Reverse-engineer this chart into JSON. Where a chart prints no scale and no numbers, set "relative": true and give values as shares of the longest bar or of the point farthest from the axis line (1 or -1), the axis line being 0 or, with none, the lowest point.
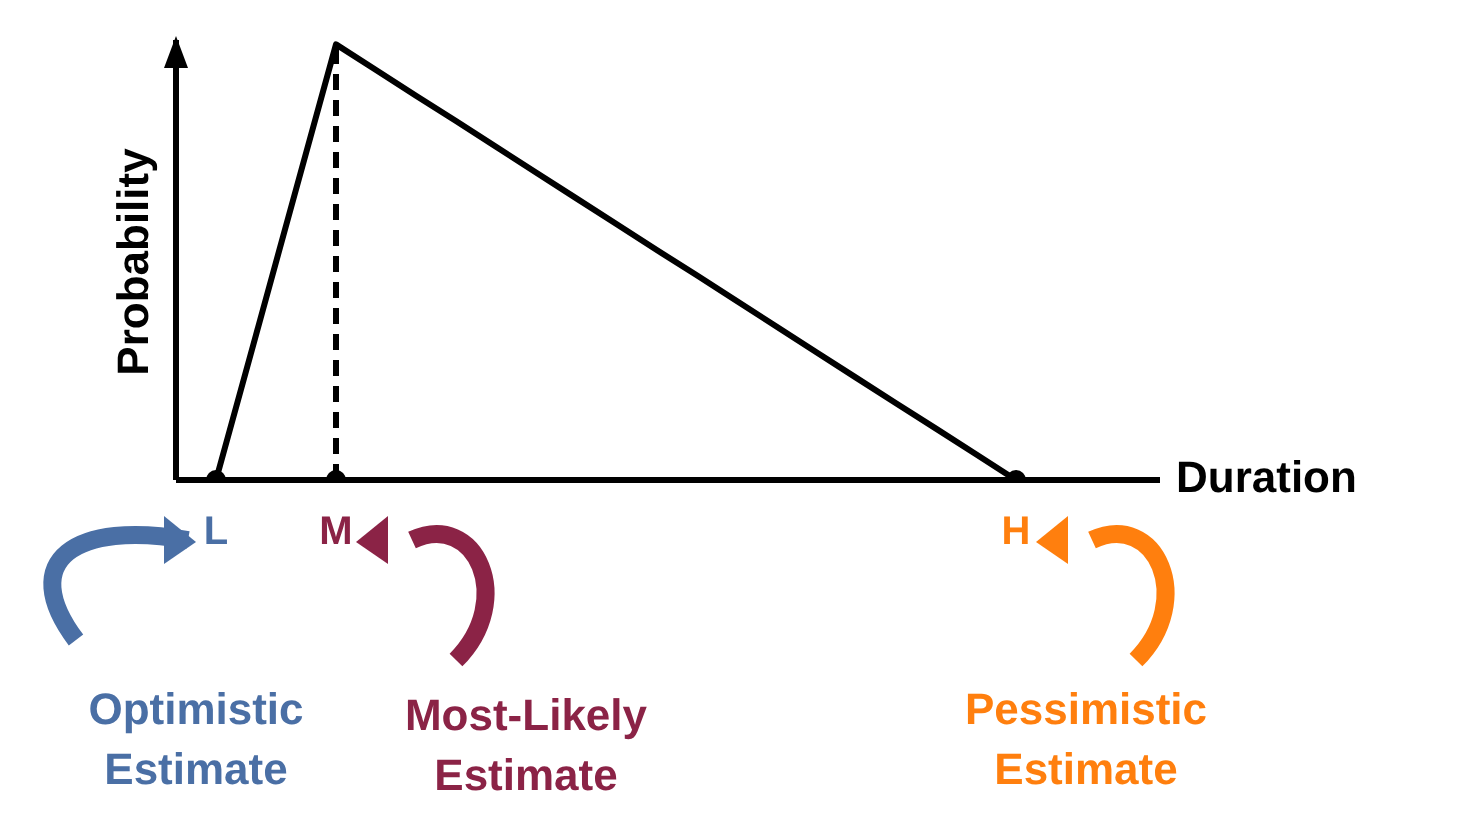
{
  "chart_data": {
    "type": "line",
    "relative": true,
    "xlabel": "Duration",
    "ylabel": "Probability",
    "categories": [
      "L",
      null,
      null,
      "M",
      null,
      null,
      null,
      null,
      null,
      null,
      null,
      null,
      null,
      null,
      null,
      null,
      null,
      null,
      null,
      null,
      "H"
    ],
    "series": [
      {
        "color": "#000000",
        "marker": "none",
        "values": [
          0,
          0.333,
          0.667,
          1,
          0.941,
          0.882,
          0.824,
          0.765,
          0.706,
          0.647,
          0.588,
          0.529,
          0.471,
          0.412,
          0.353,
          0.294,
          0.235,
          0.176,
          0.118,
          0.059,
          0
        ]
      },
      {
        "type": "scatter",
        "marker": "circle",
        "color": "#000000",
        "x": [
          "L",
          "M",
          "H"
        ],
        "values": [
          0,
          0,
          0
        ]
      }
    ],
    "ref_lines": [
      {
        "axis": "x",
        "value": "M",
        "line_style": "dashed",
        "color": "#000000"
      }
    ],
    "line_style": "solid",
    "grid": false,
    "legend": false,
    "annotations": [
      "Optimistic Estimate",
      "Most-Likely Estimate",
      "Pessimistic Estimate"
    ]
  }
}
